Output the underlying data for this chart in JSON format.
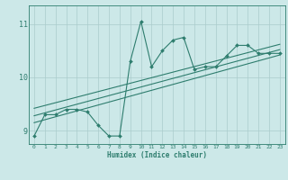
{
  "xlabel": "Humidex (Indice chaleur)",
  "xlim": [
    -0.5,
    23.5
  ],
  "ylim": [
    8.75,
    11.35
  ],
  "yticks": [
    9,
    10,
    11
  ],
  "xticks": [
    0,
    1,
    2,
    3,
    4,
    5,
    6,
    7,
    8,
    9,
    10,
    11,
    12,
    13,
    14,
    15,
    16,
    17,
    18,
    19,
    20,
    21,
    22,
    23
  ],
  "bg_color": "#cce8e8",
  "line_color": "#2e7d6e",
  "grid_color": "#aacccc",
  "scatter_data": {
    "x": [
      0,
      1,
      2,
      3,
      4,
      5,
      6,
      7,
      8,
      9,
      10,
      11,
      12,
      13,
      14,
      15,
      16,
      17,
      18,
      19,
      20,
      21,
      22,
      23
    ],
    "y": [
      8.9,
      9.3,
      9.3,
      9.4,
      9.4,
      9.35,
      9.1,
      8.9,
      8.9,
      10.3,
      11.05,
      10.2,
      10.5,
      10.7,
      10.75,
      10.15,
      10.2,
      10.2,
      10.4,
      10.6,
      10.6,
      10.45,
      10.45,
      10.45
    ]
  },
  "trend_data": [
    {
      "x": [
        0,
        23
      ],
      "y": [
        9.15,
        10.42
      ]
    },
    {
      "x": [
        0,
        23
      ],
      "y": [
        9.28,
        10.52
      ]
    },
    {
      "x": [
        0,
        23
      ],
      "y": [
        9.42,
        10.62
      ]
    }
  ]
}
